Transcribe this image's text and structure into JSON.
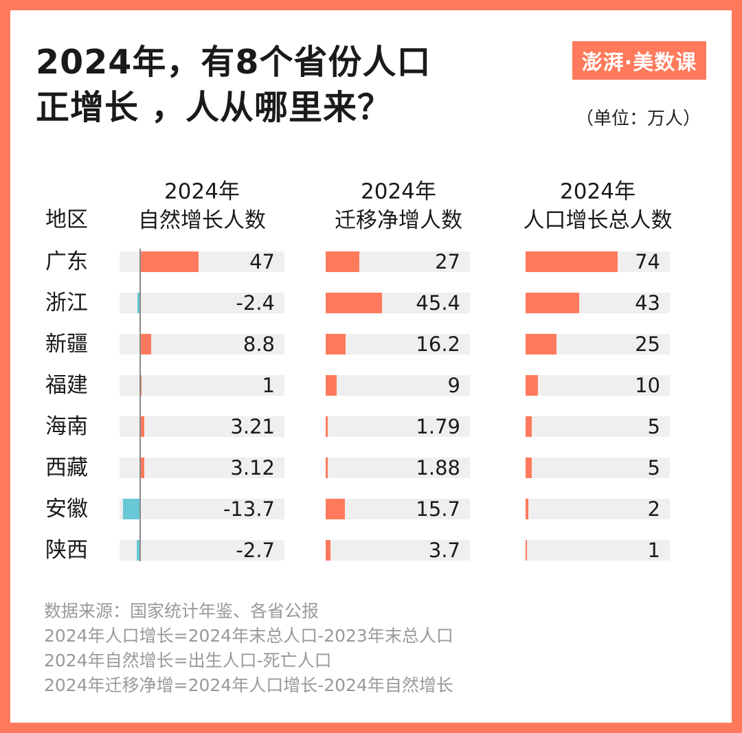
{
  "title_lines": [
    "2024年，有8个省份人口",
    "正增长 ，人从哪里来？"
  ],
  "logo": "澎湃·美数课",
  "unit": "（单位：万人）",
  "colors": {
    "frame": "#ff7a5c",
    "positive": "#ff7a5c",
    "negative": "#68c8d6",
    "track": "#efefef"
  },
  "chart_data": {
    "type": "bar",
    "row_header": "地区",
    "categories": [
      "广东",
      "浙江",
      "新疆",
      "福建",
      "海南",
      "西藏",
      "安徽",
      "陕西"
    ],
    "series": [
      {
        "name_lines": [
          "2024年",
          "自然增长人数"
        ],
        "values": [
          47,
          -2.4,
          8.8,
          1,
          3.21,
          3.12,
          -13.7,
          -2.7
        ],
        "labels": [
          "47",
          "-2.4",
          "8.8",
          "1",
          "3.21",
          "3.12",
          "-13.7",
          "-2.7"
        ]
      },
      {
        "name_lines": [
          "2024年",
          "迁移净增人数"
        ],
        "values": [
          27,
          45.4,
          16.2,
          9,
          1.79,
          1.88,
          15.7,
          3.7
        ],
        "labels": [
          "27",
          "45.4",
          "16.2",
          "9",
          "1.79",
          "1.88",
          "15.7",
          "3.7"
        ]
      },
      {
        "name_lines": [
          "2024年",
          "人口增长总人数"
        ],
        "values": [
          74,
          43,
          25,
          10,
          5,
          5,
          2,
          1
        ],
        "labels": [
          "74",
          "43",
          "25",
          "10",
          "5",
          "5",
          "2",
          "1"
        ]
      }
    ]
  },
  "notes": [
    "数据来源：国家统计年鉴、各省公报",
    "2024年人口增长=2024年末总人口-2023年末总人口",
    "2024年自然增长=出生人口-死亡人口",
    "2024年迁移净增=2024年人口增长-2024年自然增长"
  ]
}
